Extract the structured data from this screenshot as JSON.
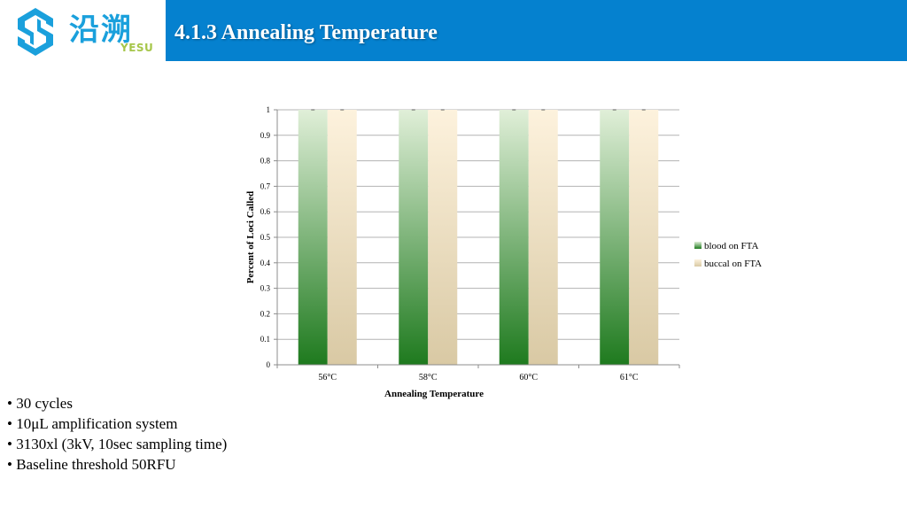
{
  "header": {
    "logo_cn": "沿溯",
    "logo_en": "YESU",
    "title": "4.1.3 Annealing Temperature",
    "logo_color": "#1aa0dc",
    "logo_accent": "#a6c64a",
    "bar_color": "#0581cf"
  },
  "chart_data": {
    "type": "bar",
    "categories": [
      "56°C",
      "58°C",
      "60°C",
      "61°C"
    ],
    "series": [
      {
        "name": "blood on FTA",
        "values": [
          1,
          1,
          1,
          1
        ],
        "color_top": "#e0efd8",
        "color_bottom": "#1e7a1e"
      },
      {
        "name": "buccal on FTA",
        "values": [
          1,
          1,
          1,
          1
        ],
        "color_top": "#fdf2dd",
        "color_bottom": "#d9c9a4"
      }
    ],
    "ylim": [
      0,
      1
    ],
    "yticks": [
      "0",
      "0.1",
      "0.2",
      "0.3",
      "0.4",
      "0.5",
      "0.6",
      "0.7",
      "0.8",
      "0.9",
      "1"
    ],
    "xlabel": "Annealing Temperature",
    "ylabel": "Percent of Loci Called",
    "grid": true,
    "legend_position": "right"
  },
  "bullets": [
    "30 cycles",
    "10μL amplification system",
    "3130xl (3kV, 10sec sampling time)",
    "Baseline threshold 50RFU"
  ]
}
